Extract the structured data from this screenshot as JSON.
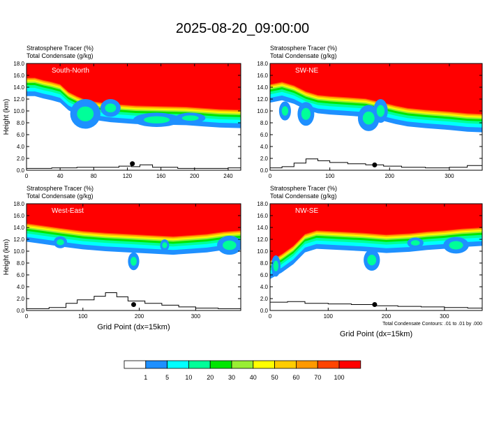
{
  "title": "2025-08-20_09:00:00",
  "chart_data": [
    {
      "type": "heatmap",
      "panel": "South-North",
      "subtitle_line1": "Stratosphere Tracer   (%)",
      "subtitle_line2": "Total Condensate   (g/kg)",
      "ylabel": "Height (km)",
      "xlabel": "",
      "xlim": [
        0,
        255
      ],
      "ylim": [
        0,
        18
      ],
      "xticks": [
        0,
        40,
        80,
        120,
        160,
        200,
        240
      ],
      "yticks": [
        "0.0",
        "2.0",
        "4.0",
        "6.0",
        "8.0",
        "10.0",
        "12.0",
        "14.0",
        "16.0",
        "18.0"
      ],
      "tracer_top_profile": [
        [
          0,
          15.7
        ],
        [
          10,
          15.7
        ],
        [
          20,
          15.3
        ],
        [
          30,
          15.0
        ],
        [
          40,
          14.6
        ],
        [
          50,
          13.3
        ],
        [
          60,
          12.6
        ],
        [
          70,
          12.0
        ],
        [
          80,
          11.7
        ],
        [
          100,
          11.3
        ],
        [
          130,
          11.0
        ],
        [
          160,
          10.9
        ],
        [
          190,
          10.8
        ],
        [
          210,
          10.6
        ],
        [
          230,
          10.4
        ],
        [
          255,
          10.3
        ]
      ],
      "terrain": [
        [
          0,
          0.3
        ],
        [
          30,
          0.4
        ],
        [
          60,
          0.5
        ],
        [
          90,
          0.5
        ],
        [
          110,
          0.7
        ],
        [
          125,
          0.6
        ],
        [
          135,
          0.9
        ],
        [
          150,
          0.5
        ],
        [
          180,
          0.3
        ],
        [
          210,
          0.3
        ],
        [
          240,
          0.4
        ],
        [
          255,
          0.4
        ]
      ],
      "marker": [
        126,
        1.1
      ]
    },
    {
      "type": "heatmap",
      "panel": "SW-NE",
      "subtitle_line1": "Stratosphere Tracer   (%)",
      "subtitle_line2": "Total Condensate   (g/kg)",
      "ylabel": "",
      "xlabel": "",
      "xlim": [
        0,
        355
      ],
      "ylim": [
        0,
        18
      ],
      "xticks": [
        0,
        100,
        200,
        300
      ],
      "yticks": [
        "0.0",
        "2.0",
        "4.0",
        "6.0",
        "8.0",
        "10.0",
        "12.0",
        "14.0",
        "16.0",
        "18.0"
      ],
      "tracer_top_profile": [
        [
          0,
          14.6
        ],
        [
          20,
          15.0
        ],
        [
          40,
          14.4
        ],
        [
          60,
          13.4
        ],
        [
          80,
          12.8
        ],
        [
          100,
          12.6
        ],
        [
          130,
          12.4
        ],
        [
          160,
          12.2
        ],
        [
          190,
          11.5
        ],
        [
          210,
          11.0
        ],
        [
          230,
          10.6
        ],
        [
          260,
          10.3
        ],
        [
          300,
          10.0
        ],
        [
          330,
          9.7
        ],
        [
          355,
          9.6
        ]
      ],
      "terrain": [
        [
          0,
          0.4
        ],
        [
          20,
          0.6
        ],
        [
          40,
          1.2
        ],
        [
          60,
          1.9
        ],
        [
          80,
          1.6
        ],
        [
          100,
          1.3
        ],
        [
          130,
          1.1
        ],
        [
          160,
          0.9
        ],
        [
          190,
          0.7
        ],
        [
          220,
          0.5
        ],
        [
          260,
          0.4
        ],
        [
          300,
          0.5
        ],
        [
          330,
          0.8
        ],
        [
          355,
          0.8
        ]
      ],
      "marker": [
        175,
        0.9
      ]
    },
    {
      "type": "heatmap",
      "panel": "West-East",
      "subtitle_line1": "Stratosphere Tracer   (%)",
      "subtitle_line2": "Total Condensate   (g/kg)",
      "ylabel": "Height (km)",
      "xlabel": "Grid Point (dx=15km)",
      "xlim": [
        0,
        380
      ],
      "ylim": [
        0,
        18
      ],
      "xticks": [
        0,
        100,
        200,
        300
      ],
      "yticks": [
        "0.0",
        "2.0",
        "4.0",
        "6.0",
        "8.0",
        "10.0",
        "12.0",
        "14.0",
        "16.0",
        "18.0"
      ],
      "tracer_top_profile": [
        [
          0,
          14.8
        ],
        [
          30,
          14.4
        ],
        [
          60,
          14.0
        ],
        [
          100,
          13.5
        ],
        [
          140,
          13.2
        ],
        [
          180,
          13.0
        ],
        [
          220,
          12.8
        ],
        [
          260,
          12.6
        ],
        [
          290,
          12.8
        ],
        [
          320,
          13.0
        ],
        [
          350,
          13.4
        ],
        [
          380,
          13.6
        ]
      ],
      "terrain": [
        [
          0,
          0.3
        ],
        [
          40,
          0.5
        ],
        [
          70,
          1.2
        ],
        [
          90,
          1.8
        ],
        [
          120,
          2.4
        ],
        [
          140,
          3.0
        ],
        [
          160,
          2.3
        ],
        [
          180,
          1.6
        ],
        [
          210,
          1.2
        ],
        [
          240,
          0.9
        ],
        [
          270,
          0.6
        ],
        [
          300,
          0.4
        ],
        [
          340,
          0.3
        ],
        [
          380,
          0.3
        ]
      ],
      "marker": [
        190,
        1.0
      ]
    },
    {
      "type": "heatmap",
      "panel": "NW-SE",
      "subtitle_line1": "Stratosphere Tracer   (%)",
      "subtitle_line2": "Total Condensate   (g/kg)",
      "ylabel": "",
      "xlabel": "Grid Point (dx=15km)",
      "note": "Total Condensate Contours: .01 to .01 by .000",
      "xlim": [
        0,
        365
      ],
      "ylim": [
        0,
        18
      ],
      "xticks": [
        0,
        100,
        200,
        300
      ],
      "yticks": [
        "0.0",
        "2.0",
        "4.0",
        "6.0",
        "8.0",
        "10.0",
        "12.0",
        "14.0",
        "16.0",
        "18.0"
      ],
      "tracer_top_profile": [
        [
          0,
          8.5
        ],
        [
          20,
          9.6
        ],
        [
          40,
          11.0
        ],
        [
          60,
          13.0
        ],
        [
          80,
          13.6
        ],
        [
          120,
          13.4
        ],
        [
          160,
          13.2
        ],
        [
          200,
          12.9
        ],
        [
          240,
          13.1
        ],
        [
          270,
          13.4
        ],
        [
          300,
          13.6
        ],
        [
          330,
          13.9
        ],
        [
          365,
          14.1
        ]
      ],
      "terrain": [
        [
          0,
          1.4
        ],
        [
          30,
          1.5
        ],
        [
          60,
          1.2
        ],
        [
          100,
          1.1
        ],
        [
          140,
          1.0
        ],
        [
          180,
          0.8
        ],
        [
          220,
          0.7
        ],
        [
          260,
          0.6
        ],
        [
          300,
          0.5
        ],
        [
          340,
          0.4
        ],
        [
          365,
          0.4
        ]
      ],
      "marker": [
        180,
        1.0
      ]
    }
  ],
  "legend": {
    "labels": [
      "1",
      "5",
      "10",
      "20",
      "30",
      "40",
      "50",
      "60",
      "70",
      "100"
    ],
    "colors": [
      "#ffffff",
      "#1e90ff",
      "#00ffff",
      "#00ff99",
      "#00e600",
      "#99ee33",
      "#ffff00",
      "#ffcc00",
      "#ff9900",
      "#ff4400",
      "#ff0000"
    ]
  }
}
